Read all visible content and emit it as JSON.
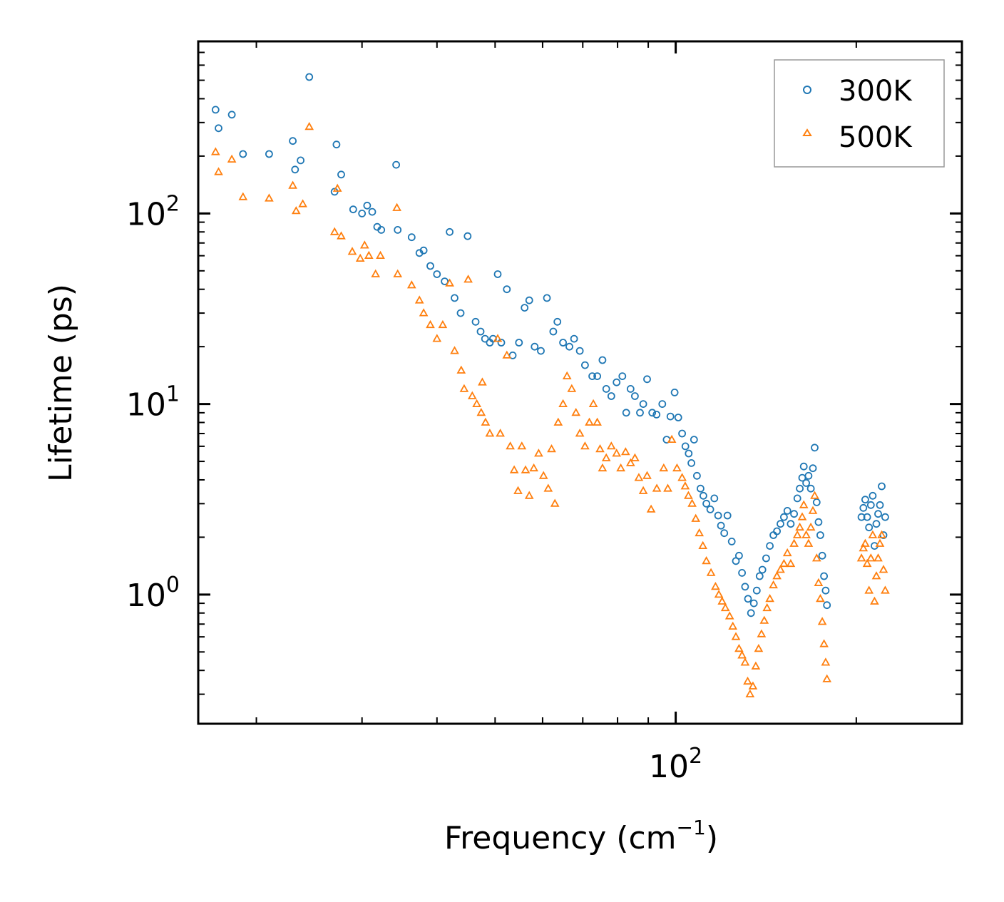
{
  "chart_data": {
    "type": "scatter",
    "title": "",
    "xlabel": "Frequency (cm",
    "xlabel_sup": "−1",
    "xlabel_close": ")",
    "ylabel": "Lifetime (ps)",
    "xscale": "log",
    "yscale": "log",
    "xlim": [
      16,
      300
    ],
    "ylim": [
      0.21,
      800
    ],
    "x_ticks": [
      {
        "value": 100,
        "base": "10",
        "exp": "2"
      }
    ],
    "y_ticks": [
      {
        "value": 1,
        "base": "10",
        "exp": "0"
      },
      {
        "value": 10,
        "base": "10",
        "exp": "1"
      },
      {
        "value": 100,
        "base": "10",
        "exp": "2"
      }
    ],
    "legend_position": "top-right",
    "colors": {
      "s300": "#1f77b4",
      "s500": "#ff7f0e",
      "axis": "#000000",
      "legend_border": "#999999"
    },
    "series": [
      {
        "name": "300K",
        "marker": "circle",
        "color": "#1f77b4",
        "points": [
          [
            17.1,
            350
          ],
          [
            17.3,
            280
          ],
          [
            18.2,
            330
          ],
          [
            19.0,
            205
          ],
          [
            21.0,
            205
          ],
          [
            23.0,
            240
          ],
          [
            23.2,
            170
          ],
          [
            23.7,
            190
          ],
          [
            24.5,
            520
          ],
          [
            27.0,
            130
          ],
          [
            27.2,
            230
          ],
          [
            27.7,
            160
          ],
          [
            29.0,
            105
          ],
          [
            30.0,
            100
          ],
          [
            30.6,
            110
          ],
          [
            31.2,
            102
          ],
          [
            31.8,
            85
          ],
          [
            32.3,
            82
          ],
          [
            34.2,
            180
          ],
          [
            34.4,
            82
          ],
          [
            36.3,
            75
          ],
          [
            37.4,
            62
          ],
          [
            38.0,
            64
          ],
          [
            39.0,
            53
          ],
          [
            40.0,
            48
          ],
          [
            41.2,
            44
          ],
          [
            42.0,
            80
          ],
          [
            42.8,
            36
          ],
          [
            43.8,
            30
          ],
          [
            45.0,
            76
          ],
          [
            46.4,
            27
          ],
          [
            47.3,
            24
          ],
          [
            48.1,
            22
          ],
          [
            49.0,
            21
          ],
          [
            49.6,
            22
          ],
          [
            50.5,
            48
          ],
          [
            51.2,
            21
          ],
          [
            52.3,
            40
          ],
          [
            53.5,
            18
          ],
          [
            54.8,
            21
          ],
          [
            56.0,
            32
          ],
          [
            57.0,
            35
          ],
          [
            58.2,
            20
          ],
          [
            59.6,
            19
          ],
          [
            61.0,
            36
          ],
          [
            62.5,
            24
          ],
          [
            63.5,
            27
          ],
          [
            64.9,
            21
          ],
          [
            66.5,
            20
          ],
          [
            67.7,
            22
          ],
          [
            69.2,
            19
          ],
          [
            70.6,
            16
          ],
          [
            72.6,
            14
          ],
          [
            74.0,
            14
          ],
          [
            75.5,
            17
          ],
          [
            76.6,
            12
          ],
          [
            78.1,
            11
          ],
          [
            79.7,
            13
          ],
          [
            81.5,
            14
          ],
          [
            82.7,
            9
          ],
          [
            84.1,
            12
          ],
          [
            85.5,
            11
          ],
          [
            87.2,
            9
          ],
          [
            88.3,
            10
          ],
          [
            89.6,
            13.5
          ],
          [
            91.4,
            9
          ],
          [
            92.9,
            8.8
          ],
          [
            95.0,
            10
          ],
          [
            96.6,
            6.5
          ],
          [
            98.0,
            8.6
          ],
          [
            99.6,
            11.5
          ],
          [
            101.0,
            8.5
          ],
          [
            102.5,
            7
          ],
          [
            103.8,
            6
          ],
          [
            105.1,
            5.5
          ],
          [
            106.2,
            4.9
          ],
          [
            107.3,
            6.5
          ],
          [
            108.5,
            4.2
          ],
          [
            110.0,
            3.6
          ],
          [
            111.2,
            3.3
          ],
          [
            112.5,
            3.0
          ],
          [
            114.2,
            2.8
          ],
          [
            116.0,
            3.2
          ],
          [
            117.7,
            2.6
          ],
          [
            119.0,
            2.3
          ],
          [
            120.5,
            2.1
          ],
          [
            122.0,
            2.6
          ],
          [
            124.0,
            1.9
          ],
          [
            126.0,
            1.5
          ],
          [
            127.5,
            1.6
          ],
          [
            129.0,
            1.3
          ],
          [
            130.5,
            1.1
          ],
          [
            132.0,
            0.95
          ],
          [
            133.5,
            0.8
          ],
          [
            135.0,
            0.9
          ],
          [
            136.5,
            1.05
          ],
          [
            138.0,
            1.25
          ],
          [
            139.5,
            1.35
          ],
          [
            141.5,
            1.55
          ],
          [
            143.5,
            1.8
          ],
          [
            145.5,
            2.05
          ],
          [
            147.5,
            2.15
          ],
          [
            149.5,
            2.35
          ],
          [
            151.5,
            2.55
          ],
          [
            153.5,
            2.75
          ],
          [
            155.5,
            2.35
          ],
          [
            157.5,
            2.65
          ],
          [
            159.5,
            3.2
          ],
          [
            161.0,
            3.6
          ],
          [
            162.5,
            4.1
          ],
          [
            163.5,
            4.7
          ],
          [
            165.0,
            3.85
          ],
          [
            166.5,
            4.2
          ],
          [
            168.0,
            3.6
          ],
          [
            169.3,
            4.6
          ],
          [
            170.5,
            5.9
          ],
          [
            171.8,
            3.05
          ],
          [
            173.0,
            2.4
          ],
          [
            174.2,
            2.05
          ],
          [
            175.5,
            1.6
          ],
          [
            176.7,
            1.25
          ],
          [
            177.8,
            1.05
          ],
          [
            178.7,
            0.88
          ],
          [
            204.0,
            2.55
          ],
          [
            205.5,
            2.85
          ],
          [
            207.0,
            3.15
          ],
          [
            208.5,
            2.55
          ],
          [
            210.0,
            2.25
          ],
          [
            211.5,
            2.95
          ],
          [
            213.0,
            3.3
          ],
          [
            214.5,
            1.8
          ],
          [
            216.0,
            2.35
          ],
          [
            217.5,
            2.65
          ],
          [
            219.0,
            2.95
          ],
          [
            220.5,
            3.7
          ],
          [
            222.0,
            2.05
          ],
          [
            223.5,
            2.55
          ]
        ]
      },
      {
        "name": "500K",
        "marker": "triangle",
        "color": "#ff7f0e",
        "points": [
          [
            17.1,
            210
          ],
          [
            17.3,
            165
          ],
          [
            18.2,
            192
          ],
          [
            19.0,
            122
          ],
          [
            21.0,
            120
          ],
          [
            23.0,
            140
          ],
          [
            23.3,
            103
          ],
          [
            23.9,
            112
          ],
          [
            24.5,
            285
          ],
          [
            27.0,
            80
          ],
          [
            27.3,
            135
          ],
          [
            27.7,
            76
          ],
          [
            28.9,
            63
          ],
          [
            29.8,
            58
          ],
          [
            30.3,
            68
          ],
          [
            30.8,
            60
          ],
          [
            31.6,
            48
          ],
          [
            32.2,
            60
          ],
          [
            34.3,
            107
          ],
          [
            34.4,
            48
          ],
          [
            36.3,
            42
          ],
          [
            37.4,
            35
          ],
          [
            38.0,
            30
          ],
          [
            39.0,
            26
          ],
          [
            40.0,
            22
          ],
          [
            40.9,
            26
          ],
          [
            42.0,
            43
          ],
          [
            42.8,
            19
          ],
          [
            43.9,
            15
          ],
          [
            44.4,
            12
          ],
          [
            45.1,
            45
          ],
          [
            45.8,
            11
          ],
          [
            46.6,
            10
          ],
          [
            47.4,
            9
          ],
          [
            47.6,
            13
          ],
          [
            48.2,
            8
          ],
          [
            49.0,
            7
          ],
          [
            50.5,
            22
          ],
          [
            51.0,
            7
          ],
          [
            52.3,
            18
          ],
          [
            53.0,
            6
          ],
          [
            53.8,
            4.5
          ],
          [
            54.6,
            3.5
          ],
          [
            55.4,
            6
          ],
          [
            56.2,
            4.5
          ],
          [
            57.0,
            3.3
          ],
          [
            58.0,
            4.6
          ],
          [
            59.1,
            5.5
          ],
          [
            60.2,
            4.2
          ],
          [
            61.3,
            3.6
          ],
          [
            62.1,
            5.8
          ],
          [
            62.9,
            3.0
          ],
          [
            63.7,
            8
          ],
          [
            64.9,
            10
          ],
          [
            65.9,
            14
          ],
          [
            67.1,
            12
          ],
          [
            68.2,
            9
          ],
          [
            69.2,
            7
          ],
          [
            70.6,
            6
          ],
          [
            71.8,
            8
          ],
          [
            72.9,
            10
          ],
          [
            74.0,
            8
          ],
          [
            74.8,
            5.8
          ],
          [
            75.5,
            4.6
          ],
          [
            76.6,
            5.2
          ],
          [
            78.1,
            6
          ],
          [
            79.7,
            5.5
          ],
          [
            81.0,
            4.6
          ],
          [
            82.5,
            5.6
          ],
          [
            84.1,
            4.9
          ],
          [
            85.5,
            5.2
          ],
          [
            86.8,
            4.1
          ],
          [
            88.3,
            3.5
          ],
          [
            89.6,
            4.2
          ],
          [
            91.0,
            2.8
          ],
          [
            93.0,
            3.6
          ],
          [
            95.5,
            4.6
          ],
          [
            97.0,
            3.6
          ],
          [
            98.5,
            6.5
          ],
          [
            100.5,
            4.6
          ],
          [
            102.5,
            4.1
          ],
          [
            103.7,
            3.7
          ],
          [
            105.0,
            3.3
          ],
          [
            106.5,
            3.0
          ],
          [
            108.0,
            2.5
          ],
          [
            109.5,
            2.1
          ],
          [
            111.0,
            1.8
          ],
          [
            112.5,
            1.5
          ],
          [
            114.5,
            1.3
          ],
          [
            116.5,
            1.1
          ],
          [
            118.0,
            1.0
          ],
          [
            119.5,
            0.92
          ],
          [
            121.0,
            0.85
          ],
          [
            123.0,
            0.77
          ],
          [
            124.5,
            0.68
          ],
          [
            126.0,
            0.6
          ],
          [
            127.5,
            0.52
          ],
          [
            129.0,
            0.48
          ],
          [
            130.5,
            0.44
          ],
          [
            131.8,
            0.35
          ],
          [
            133.0,
            0.3
          ],
          [
            134.5,
            0.33
          ],
          [
            136.0,
            0.42
          ],
          [
            137.5,
            0.52
          ],
          [
            139.0,
            0.62
          ],
          [
            140.5,
            0.73
          ],
          [
            142.0,
            0.85
          ],
          [
            143.5,
            0.95
          ],
          [
            145.5,
            1.12
          ],
          [
            147.5,
            1.25
          ],
          [
            149.5,
            1.35
          ],
          [
            151.5,
            1.45
          ],
          [
            153.5,
            1.65
          ],
          [
            155.5,
            1.45
          ],
          [
            157.5,
            1.85
          ],
          [
            159.5,
            2.05
          ],
          [
            161.0,
            2.25
          ],
          [
            162.5,
            2.55
          ],
          [
            163.5,
            2.95
          ],
          [
            165.0,
            2.05
          ],
          [
            166.5,
            1.85
          ],
          [
            168.0,
            2.25
          ],
          [
            169.3,
            2.75
          ],
          [
            170.5,
            3.3
          ],
          [
            171.8,
            1.55
          ],
          [
            173.0,
            1.15
          ],
          [
            174.2,
            0.95
          ],
          [
            175.5,
            0.72
          ],
          [
            176.7,
            0.55
          ],
          [
            177.8,
            0.44
          ],
          [
            178.7,
            0.36
          ],
          [
            204.0,
            1.55
          ],
          [
            205.5,
            1.75
          ],
          [
            207.0,
            1.85
          ],
          [
            208.5,
            1.45
          ],
          [
            210.0,
            1.05
          ],
          [
            211.5,
            1.55
          ],
          [
            213.0,
            2.05
          ],
          [
            214.5,
            0.92
          ],
          [
            216.0,
            1.25
          ],
          [
            217.5,
            1.55
          ],
          [
            219.0,
            1.85
          ],
          [
            220.5,
            2.05
          ],
          [
            222.0,
            1.35
          ],
          [
            223.5,
            1.05
          ]
        ]
      }
    ]
  }
}
